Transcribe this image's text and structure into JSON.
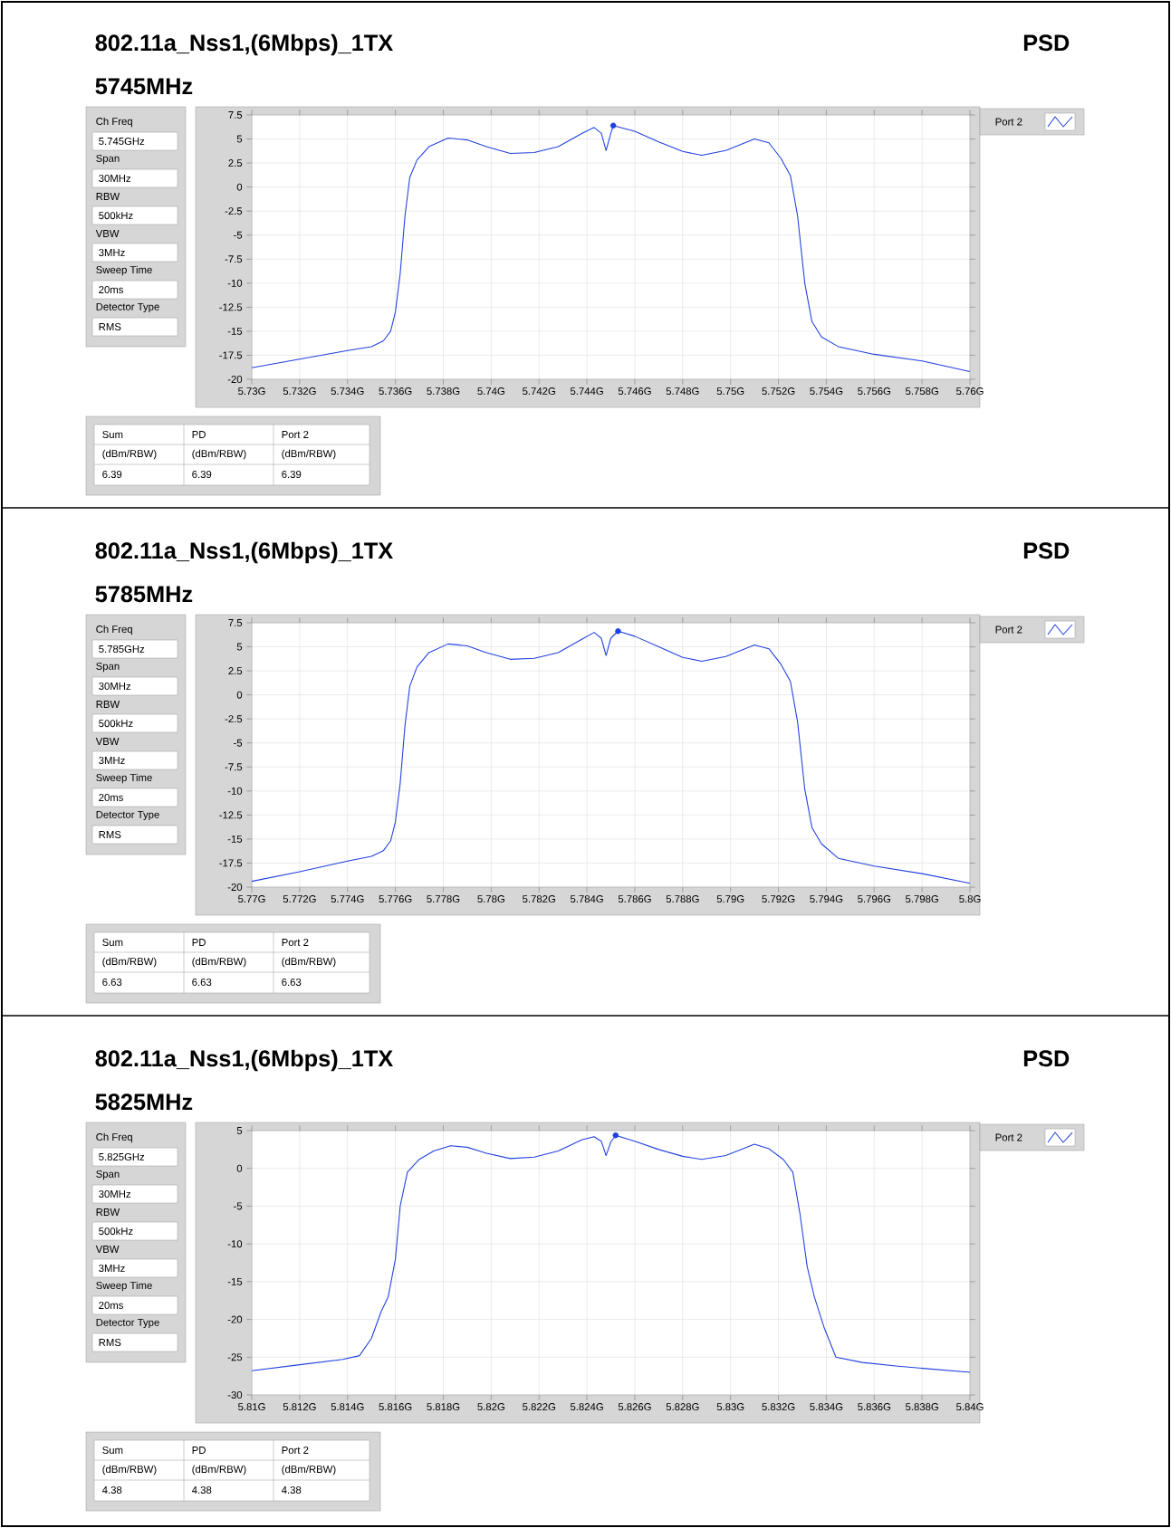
{
  "chart_data": [
    {
      "type": "line",
      "title": "802.11a_Nss1,(6Mbps)_1TX",
      "subtitle": "5745MHz",
      "legend": "top right",
      "grid": true,
      "xlim": [
        5.73,
        5.76
      ],
      "ylim": [
        -20,
        7.5
      ],
      "xticks": [
        {
          "value": 5.73,
          "label": "5.73G"
        },
        {
          "value": 5.732,
          "label": "5.732G"
        },
        {
          "value": 5.734,
          "label": "5.734G"
        },
        {
          "value": 5.736,
          "label": "5.736G"
        },
        {
          "value": 5.738,
          "label": "5.738G"
        },
        {
          "value": 5.74,
          "label": "5.74G"
        },
        {
          "value": 5.742,
          "label": "5.742G"
        },
        {
          "value": 5.744,
          "label": "5.744G"
        },
        {
          "value": 5.746,
          "label": "5.746G"
        },
        {
          "value": 5.748,
          "label": "5.748G"
        },
        {
          "value": 5.75,
          "label": "5.75G"
        },
        {
          "value": 5.752,
          "label": "5.752G"
        },
        {
          "value": 5.754,
          "label": "5.754G"
        },
        {
          "value": 5.756,
          "label": "5.756G"
        },
        {
          "value": 5.758,
          "label": "5.758G"
        },
        {
          "value": 5.76,
          "label": "5.76G"
        }
      ],
      "yticks": [
        7.5,
        5,
        2.5,
        0,
        -2.5,
        -5,
        -7.5,
        -10,
        -12.5,
        -15,
        -17.5,
        -20
      ],
      "annotations": [
        "PSD",
        "Ch Freq",
        "5.745GHz",
        "Span",
        "30MHz",
        "RBW",
        "500kHz",
        "VBW",
        "3MHz",
        "Sweep Time",
        "20ms",
        "Detector Type",
        "RMS",
        "Sum",
        "PD",
        "Port 2",
        "(dBm/RBW)",
        "(dBm/RBW)",
        "(dBm/RBW)",
        "6.39",
        "6.39",
        "6.39"
      ],
      "series": [
        {
          "name": "Port 2",
          "color": "#2040e0",
          "marker": "none",
          "x": [
            5.73,
            5.732,
            5.734,
            5.735,
            5.7355,
            5.7358,
            5.736,
            5.7362,
            5.7364,
            5.7366,
            5.7369,
            5.7374,
            5.7382,
            5.739,
            5.7398,
            5.7408,
            5.7418,
            5.7428,
            5.7438,
            5.7443,
            5.7446,
            5.7448,
            5.745,
            5.7451,
            5.746,
            5.747,
            5.748,
            5.7488,
            5.7498,
            5.751,
            5.7516,
            5.7521,
            5.7525,
            5.7528,
            5.7531,
            5.7534,
            5.7538,
            5.7545,
            5.756,
            5.758,
            5.76
          ],
          "values": [
            -18.8,
            -17.9,
            -17.0,
            -16.6,
            -16.0,
            -15.0,
            -13.0,
            -9.0,
            -3.0,
            1.0,
            2.8,
            4.2,
            5.1,
            4.9,
            4.2,
            3.5,
            3.6,
            4.2,
            5.6,
            6.2,
            5.6,
            3.8,
            5.6,
            6.39,
            5.8,
            4.7,
            3.7,
            3.3,
            3.8,
            5.0,
            4.6,
            3.0,
            1.2,
            -3.0,
            -10.0,
            -14.0,
            -15.6,
            -16.6,
            -17.4,
            -18.1,
            -19.2
          ]
        },
        {
          "type": "scatter",
          "color": "#2040e0",
          "marker": "circle",
          "x": [
            5.7451
          ],
          "values": [
            6.39
          ]
        }
      ]
    },
    {
      "type": "line",
      "title": "802.11a_Nss1,(6Mbps)_1TX",
      "subtitle": "5785MHz",
      "legend": "top right",
      "grid": true,
      "xlim": [
        5.77,
        5.8
      ],
      "ylim": [
        -20,
        7.5
      ],
      "xticks": [
        {
          "value": 5.77,
          "label": "5.77G"
        },
        {
          "value": 5.772,
          "label": "5.772G"
        },
        {
          "value": 5.774,
          "label": "5.774G"
        },
        {
          "value": 5.776,
          "label": "5.776G"
        },
        {
          "value": 5.778,
          "label": "5.778G"
        },
        {
          "value": 5.78,
          "label": "5.78G"
        },
        {
          "value": 5.782,
          "label": "5.782G"
        },
        {
          "value": 5.784,
          "label": "5.784G"
        },
        {
          "value": 5.786,
          "label": "5.786G"
        },
        {
          "value": 5.788,
          "label": "5.788G"
        },
        {
          "value": 5.79,
          "label": "5.79G"
        },
        {
          "value": 5.792,
          "label": "5.792G"
        },
        {
          "value": 5.794,
          "label": "5.794G"
        },
        {
          "value": 5.796,
          "label": "5.796G"
        },
        {
          "value": 5.798,
          "label": "5.798G"
        },
        {
          "value": 5.8,
          "label": "5.8G"
        }
      ],
      "yticks": [
        7.5,
        5,
        2.5,
        0,
        -2.5,
        -5,
        -7.5,
        -10,
        -12.5,
        -15,
        -17.5,
        -20
      ],
      "annotations": [
        "PSD",
        "Ch Freq",
        "5.785GHz",
        "Span",
        "30MHz",
        "RBW",
        "500kHz",
        "VBW",
        "3MHz",
        "Sweep Time",
        "20ms",
        "Detector Type",
        "RMS",
        "Sum",
        "PD",
        "Port 2",
        "(dBm/RBW)",
        "(dBm/RBW)",
        "(dBm/RBW)",
        "6.63",
        "6.63",
        "6.63"
      ],
      "series": [
        {
          "name": "Port 2",
          "color": "#2040e0",
          "marker": "none",
          "x": [
            5.77,
            5.772,
            5.774,
            5.775,
            5.7755,
            5.7758,
            5.776,
            5.7762,
            5.7764,
            5.7766,
            5.7769,
            5.7774,
            5.7782,
            5.779,
            5.7798,
            5.7808,
            5.7818,
            5.7828,
            5.7838,
            5.7843,
            5.7846,
            5.7848,
            5.785,
            5.7853,
            5.786,
            5.787,
            5.788,
            5.7888,
            5.7898,
            5.791,
            5.7916,
            5.7921,
            5.7925,
            5.7928,
            5.7931,
            5.7934,
            5.7938,
            5.7945,
            5.796,
            5.798,
            5.8
          ],
          "values": [
            -19.4,
            -18.4,
            -17.3,
            -16.8,
            -16.2,
            -15.2,
            -13.2,
            -9.2,
            -3.2,
            0.9,
            2.9,
            4.4,
            5.3,
            5.1,
            4.4,
            3.7,
            3.8,
            4.4,
            5.8,
            6.5,
            5.9,
            4.1,
            5.9,
            6.63,
            6.1,
            5.0,
            3.9,
            3.5,
            4.0,
            5.2,
            4.8,
            3.2,
            1.4,
            -2.8,
            -9.8,
            -13.8,
            -15.5,
            -17.0,
            -17.8,
            -18.6,
            -19.6
          ]
        },
        {
          "type": "scatter",
          "color": "#2040e0",
          "marker": "circle",
          "x": [
            5.7853
          ],
          "values": [
            6.63
          ]
        }
      ]
    },
    {
      "type": "line",
      "title": "802.11a_Nss1,(6Mbps)_1TX",
      "subtitle": "5825MHz",
      "legend": "top right",
      "grid": true,
      "xlim": [
        5.81,
        5.84
      ],
      "ylim": [
        -30,
        5
      ],
      "xticks": [
        {
          "value": 5.81,
          "label": "5.81G"
        },
        {
          "value": 5.812,
          "label": "5.812G"
        },
        {
          "value": 5.814,
          "label": "5.814G"
        },
        {
          "value": 5.816,
          "label": "5.816G"
        },
        {
          "value": 5.818,
          "label": "5.818G"
        },
        {
          "value": 5.82,
          "label": "5.82G"
        },
        {
          "value": 5.822,
          "label": "5.822G"
        },
        {
          "value": 5.824,
          "label": "5.824G"
        },
        {
          "value": 5.826,
          "label": "5.826G"
        },
        {
          "value": 5.828,
          "label": "5.828G"
        },
        {
          "value": 5.83,
          "label": "5.83G"
        },
        {
          "value": 5.832,
          "label": "5.832G"
        },
        {
          "value": 5.834,
          "label": "5.834G"
        },
        {
          "value": 5.836,
          "label": "5.836G"
        },
        {
          "value": 5.838,
          "label": "5.838G"
        },
        {
          "value": 5.84,
          "label": "5.84G"
        }
      ],
      "yticks": [
        5,
        0,
        -5,
        -10,
        -15,
        -20,
        -25,
        -30
      ],
      "annotations": [
        "PSD",
        "Ch Freq",
        "5.825GHz",
        "Span",
        "30MHz",
        "RBW",
        "500kHz",
        "VBW",
        "3MHz",
        "Sweep Time",
        "20ms",
        "Detector Type",
        "RMS",
        "Sum",
        "PD",
        "Port 2",
        "(dBm/RBW)",
        "(dBm/RBW)",
        "(dBm/RBW)",
        "4.38",
        "4.38",
        "4.38"
      ],
      "series": [
        {
          "name": "Port 2",
          "color": "#2040e0",
          "marker": "none",
          "x": [
            5.81,
            5.812,
            5.8138,
            5.8145,
            5.815,
            5.8154,
            5.8157,
            5.816,
            5.8162,
            5.8165,
            5.817,
            5.8176,
            5.8183,
            5.819,
            5.8198,
            5.8208,
            5.8218,
            5.8228,
            5.8238,
            5.8243,
            5.8246,
            5.8248,
            5.825,
            5.8252,
            5.826,
            5.827,
            5.828,
            5.8288,
            5.8298,
            5.831,
            5.8316,
            5.8322,
            5.8326,
            5.8329,
            5.8332,
            5.8335,
            5.8339,
            5.8344,
            5.8355,
            5.837,
            5.84
          ],
          "values": [
            -26.8,
            -26.0,
            -25.3,
            -24.8,
            -22.5,
            -19.0,
            -17.0,
            -12.0,
            -5.0,
            -0.5,
            1.2,
            2.3,
            3.0,
            2.8,
            2.0,
            1.3,
            1.5,
            2.3,
            3.8,
            4.2,
            3.6,
            1.7,
            3.5,
            4.38,
            3.6,
            2.5,
            1.6,
            1.2,
            1.7,
            3.2,
            2.6,
            1.2,
            -0.5,
            -6.0,
            -13.0,
            -17.0,
            -21.0,
            -25.0,
            -25.7,
            -26.2,
            -27.0
          ]
        },
        {
          "type": "scatter",
          "color": "#2040e0",
          "marker": "circle",
          "x": [
            5.8252
          ],
          "values": [
            4.38
          ]
        }
      ]
    }
  ]
}
